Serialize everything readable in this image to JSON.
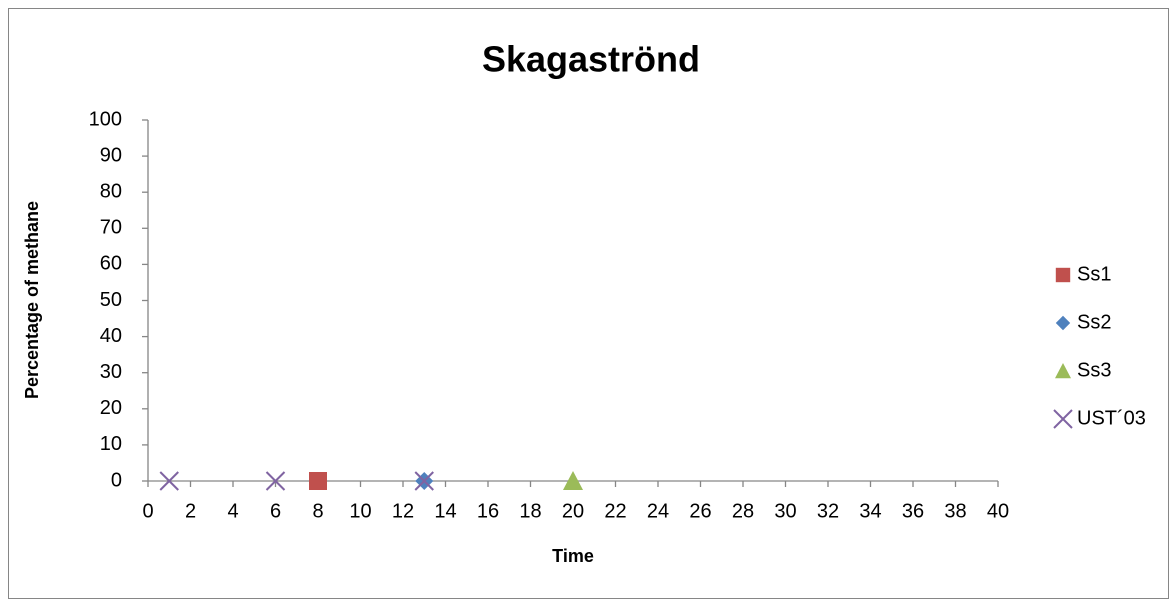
{
  "chart_data": {
    "type": "scatter",
    "title": "Skagaströnd",
    "x_label": "Time",
    "y_label": "Percentage of methane",
    "xlim": [
      0,
      40
    ],
    "xticks": [
      0,
      2,
      4,
      6,
      8,
      10,
      12,
      14,
      16,
      18,
      20,
      22,
      24,
      26,
      28,
      30,
      32,
      34,
      36,
      38,
      40
    ],
    "ylim": [
      0,
      100
    ],
    "yticks": [
      0,
      10,
      20,
      30,
      40,
      50,
      60,
      70,
      80,
      90,
      100
    ],
    "grid": false,
    "legend": "right",
    "series": [
      {
        "name": "Ss1",
        "color": "#c0504d",
        "marker": "square",
        "x": [
          8
        ],
        "values": [
          0
        ]
      },
      {
        "name": "Ss2",
        "color": "#4f81bd",
        "marker": "diamond",
        "x": [
          13
        ],
        "values": [
          0
        ]
      },
      {
        "name": "Ss3",
        "color": "#9bbb59",
        "marker": "triangle",
        "x": [
          20
        ],
        "values": [
          0
        ]
      },
      {
        "name": "UST´03",
        "color": "#8064a2",
        "marker": "x",
        "x": [
          1,
          6,
          13
        ],
        "values": [
          0,
          0,
          0
        ]
      }
    ]
  }
}
